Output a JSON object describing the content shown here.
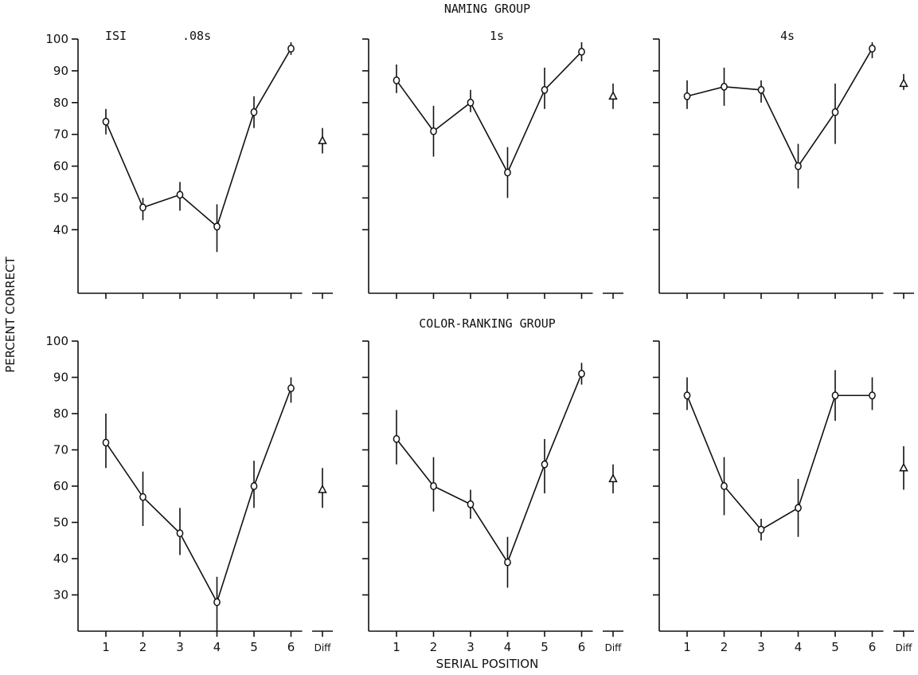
{
  "figure": {
    "ylabel": "PERCENT CORRECT",
    "xlabel": "SERIAL POSITION",
    "group_labels": {
      "top": "NAMING GROUP",
      "bottom": "COLOR-RANKING GROUP"
    },
    "isi_label": "ISI",
    "diff_label": "Diff"
  },
  "chart_data": [
    {
      "type": "line",
      "group": "NAMING GROUP",
      "title": ".08s",
      "x": [
        1,
        2,
        3,
        4,
        5,
        6
      ],
      "values": [
        74,
        47,
        51,
        41,
        77,
        97
      ],
      "err_low": [
        70,
        43,
        46,
        33,
        72,
        95
      ],
      "err_high": [
        78,
        50,
        55,
        48,
        82,
        99
      ],
      "diff": {
        "value": 68,
        "low": 64,
        "high": 72
      },
      "ylim": [
        20,
        100
      ],
      "yticks": [
        40,
        50,
        60,
        70,
        80,
        90,
        100
      ],
      "xticks": [
        1,
        2,
        3,
        4,
        5,
        6
      ],
      "marker": "circle",
      "grid": false
    },
    {
      "type": "line",
      "group": "NAMING GROUP",
      "title": "1s",
      "x": [
        1,
        2,
        3,
        4,
        5,
        6
      ],
      "values": [
        87,
        71,
        80,
        58,
        84,
        96
      ],
      "err_low": [
        83,
        63,
        77,
        50,
        78,
        93
      ],
      "err_high": [
        92,
        79,
        84,
        66,
        91,
        99
      ],
      "diff": {
        "value": 82,
        "low": 78,
        "high": 86
      },
      "ylim": [
        20,
        100
      ],
      "yticks": [
        40,
        50,
        60,
        70,
        80,
        90,
        100
      ],
      "xticks": [
        1,
        2,
        3,
        4,
        5,
        6
      ],
      "marker": "circle",
      "grid": false
    },
    {
      "type": "line",
      "group": "NAMING GROUP",
      "title": "4s",
      "x": [
        1,
        2,
        3,
        4,
        5,
        6
      ],
      "values": [
        82,
        85,
        84,
        60,
        77,
        97
      ],
      "err_low": [
        78,
        79,
        80,
        53,
        67,
        94
      ],
      "err_high": [
        87,
        91,
        87,
        67,
        86,
        99
      ],
      "diff": {
        "value": 86,
        "low": 84,
        "high": 89
      },
      "ylim": [
        20,
        100
      ],
      "yticks": [
        40,
        50,
        60,
        70,
        80,
        90,
        100
      ],
      "xticks": [
        1,
        2,
        3,
        4,
        5,
        6
      ],
      "marker": "circle",
      "grid": false
    },
    {
      "type": "line",
      "group": "COLOR-RANKING GROUP",
      "title": "",
      "x": [
        1,
        2,
        3,
        4,
        5,
        6
      ],
      "values": [
        72,
        57,
        47,
        28,
        60,
        87
      ],
      "err_low": [
        65,
        49,
        41,
        20,
        54,
        83
      ],
      "err_high": [
        80,
        64,
        54,
        35,
        67,
        90
      ],
      "diff": {
        "value": 59,
        "low": 54,
        "high": 65
      },
      "ylim": [
        20,
        100
      ],
      "yticks": [
        30,
        40,
        50,
        60,
        70,
        80,
        90,
        100
      ],
      "xticks": [
        1,
        2,
        3,
        4,
        5,
        6
      ],
      "marker": "circle",
      "grid": false
    },
    {
      "type": "line",
      "group": "COLOR-RANKING GROUP",
      "title": "",
      "x": [
        1,
        2,
        3,
        4,
        5,
        6
      ],
      "values": [
        73,
        60,
        55,
        39,
        66,
        91
      ],
      "err_low": [
        66,
        53,
        51,
        32,
        58,
        88
      ],
      "err_high": [
        81,
        68,
        59,
        46,
        73,
        94
      ],
      "diff": {
        "value": 62,
        "low": 58,
        "high": 66
      },
      "ylim": [
        20,
        100
      ],
      "yticks": [
        30,
        40,
        50,
        60,
        70,
        80,
        90,
        100
      ],
      "xticks": [
        1,
        2,
        3,
        4,
        5,
        6
      ],
      "marker": "circle",
      "grid": false
    },
    {
      "type": "line",
      "group": "COLOR-RANKING GROUP",
      "title": "",
      "x": [
        1,
        2,
        3,
        4,
        5,
        6
      ],
      "values": [
        85,
        60,
        48,
        54,
        85,
        85
      ],
      "err_low": [
        81,
        52,
        45,
        46,
        78,
        81
      ],
      "err_high": [
        90,
        68,
        51,
        62,
        92,
        90
      ],
      "diff": {
        "value": 65,
        "low": 59,
        "high": 71
      },
      "ylim": [
        20,
        100
      ],
      "yticks": [
        30,
        40,
        50,
        60,
        70,
        80,
        90,
        100
      ],
      "xticks": [
        1,
        2,
        3,
        4,
        5,
        6
      ],
      "marker": "circle",
      "grid": false
    }
  ]
}
